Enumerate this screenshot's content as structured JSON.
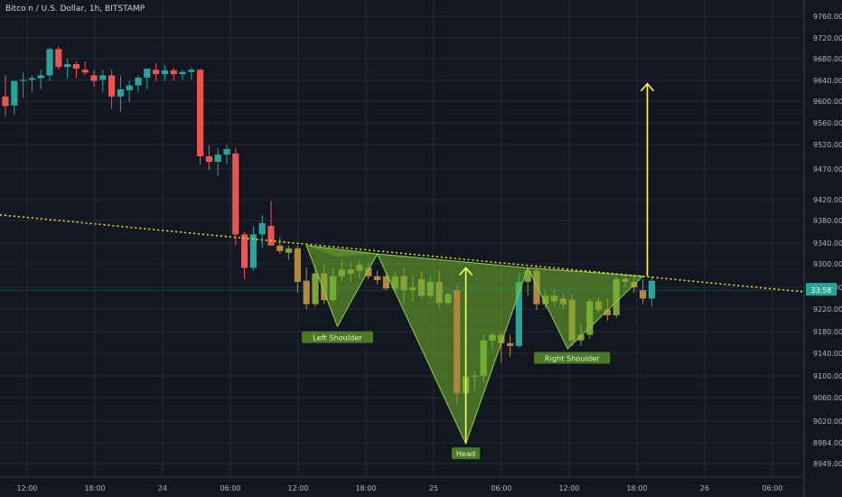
{
  "header": {
    "title": "Bitcoin / U.S. Dollar, 1h, BITSTAMP"
  },
  "chart_data": {
    "type": "candlestick",
    "title": "Bitcoin / U.S. Dollar, 1h, BITSTAMP",
    "y_ticks": [
      "9760.00",
      "9720.00",
      "9680.00",
      "9640.00",
      "9600.00",
      "9560.00",
      "9520.00",
      "9470.00",
      "9420.00",
      "9380.00",
      "9340.00",
      "9300.00",
      "9260.00",
      "9220.00",
      "9180.00",
      "9140.00",
      "9100.00",
      "9060.00",
      "9020.00",
      "8984.00",
      "8949.00"
    ],
    "x_ticks": [
      "12:00",
      "18:00",
      "24",
      "06:00",
      "12:00",
      "18:00",
      "25",
      "06:00",
      "12:00",
      "18:00",
      "26",
      "06:00"
    ],
    "ylim": [
      8930,
      9785
    ],
    "last_price_label": "33:58",
    "grid": true,
    "candle_colors": {
      "up": "#26a69a",
      "down": "#ef5350",
      "highlight_up": "#8a9a3a",
      "highlight_down": "#b08a40"
    },
    "candles": [
      {
        "o": 9612,
        "h": 9650,
        "l": 9576,
        "c": 9595
      },
      {
        "o": 9596,
        "h": 9640,
        "l": 9580,
        "c": 9640
      },
      {
        "o": 9640,
        "h": 9655,
        "l": 9610,
        "c": 9642
      },
      {
        "o": 9642,
        "h": 9650,
        "l": 9620,
        "c": 9645
      },
      {
        "o": 9645,
        "h": 9660,
        "l": 9625,
        "c": 9650
      },
      {
        "o": 9650,
        "h": 9700,
        "l": 9640,
        "c": 9697
      },
      {
        "o": 9697,
        "h": 9702,
        "l": 9660,
        "c": 9665
      },
      {
        "o": 9665,
        "h": 9680,
        "l": 9645,
        "c": 9670
      },
      {
        "o": 9670,
        "h": 9675,
        "l": 9645,
        "c": 9662
      },
      {
        "o": 9660,
        "h": 9675,
        "l": 9650,
        "c": 9655
      },
      {
        "o": 9650,
        "h": 9660,
        "l": 9630,
        "c": 9640
      },
      {
        "o": 9642,
        "h": 9660,
        "l": 9620,
        "c": 9650
      },
      {
        "o": 9650,
        "h": 9660,
        "l": 9590,
        "c": 9612
      },
      {
        "o": 9612,
        "h": 9650,
        "l": 9585,
        "c": 9625
      },
      {
        "o": 9623,
        "h": 9640,
        "l": 9602,
        "c": 9632
      },
      {
        "o": 9632,
        "h": 9650,
        "l": 9620,
        "c": 9646
      },
      {
        "o": 9646,
        "h": 9660,
        "l": 9625,
        "c": 9662
      },
      {
        "o": 9660,
        "h": 9672,
        "l": 9640,
        "c": 9652
      },
      {
        "o": 9652,
        "h": 9668,
        "l": 9640,
        "c": 9659
      },
      {
        "o": 9659,
        "h": 9664,
        "l": 9640,
        "c": 9652
      },
      {
        "o": 9652,
        "h": 9660,
        "l": 9642,
        "c": 9656
      },
      {
        "o": 9656,
        "h": 9664,
        "l": 9642,
        "c": 9660
      },
      {
        "o": 9660,
        "h": 9662,
        "l": 9490,
        "c": 9505
      },
      {
        "o": 9505,
        "h": 9525,
        "l": 9480,
        "c": 9495
      },
      {
        "o": 9495,
        "h": 9520,
        "l": 9470,
        "c": 9508
      },
      {
        "o": 9508,
        "h": 9525,
        "l": 9490,
        "c": 9518
      },
      {
        "o": 9510,
        "h": 9520,
        "l": 9345,
        "c": 9365
      },
      {
        "o": 9365,
        "h": 9370,
        "l": 9285,
        "c": 9305
      },
      {
        "o": 9305,
        "h": 9380,
        "l": 9300,
        "c": 9365
      },
      {
        "o": 9365,
        "h": 9400,
        "l": 9340,
        "c": 9385
      },
      {
        "o": 9380,
        "h": 9425,
        "l": 9345,
        "c": 9345
      },
      {
        "o": 9345,
        "h": 9360,
        "l": 9330,
        "c": 9335
      },
      {
        "o": 9332,
        "h": 9345,
        "l": 9320,
        "c": 9340
      },
      {
        "o": 9340,
        "h": 9345,
        "l": 9260,
        "c": 9280
      },
      {
        "o": 9282,
        "h": 9305,
        "l": 9230,
        "c": 9240
      },
      {
        "o": 9240,
        "h": 9310,
        "l": 9235,
        "c": 9295
      },
      {
        "o": 9295,
        "h": 9310,
        "l": 9240,
        "c": 9247
      },
      {
        "o": 9247,
        "h": 9305,
        "l": 9245,
        "c": 9290
      },
      {
        "o": 9290,
        "h": 9320,
        "l": 9280,
        "c": 9302
      },
      {
        "o": 9302,
        "h": 9315,
        "l": 9280,
        "c": 9295
      },
      {
        "o": 9300,
        "h": 9318,
        "l": 9285,
        "c": 9310
      },
      {
        "o": 9305,
        "h": 9315,
        "l": 9285,
        "c": 9290
      },
      {
        "o": 9290,
        "h": 9300,
        "l": 9275,
        "c": 9283
      },
      {
        "o": 9290,
        "h": 9300,
        "l": 9265,
        "c": 9268
      },
      {
        "o": 9268,
        "h": 9300,
        "l": 9260,
        "c": 9290
      },
      {
        "o": 9290,
        "h": 9305,
        "l": 9240,
        "c": 9265
      },
      {
        "o": 9265,
        "h": 9290,
        "l": 9245,
        "c": 9270
      },
      {
        "o": 9285,
        "h": 9300,
        "l": 9250,
        "c": 9255
      },
      {
        "o": 9255,
        "h": 9290,
        "l": 9250,
        "c": 9280
      },
      {
        "o": 9280,
        "h": 9300,
        "l": 9235,
        "c": 9242
      },
      {
        "o": 9242,
        "h": 9262,
        "l": 9238,
        "c": 9258
      },
      {
        "o": 9265,
        "h": 9275,
        "l": 9060,
        "c": 9080
      },
      {
        "o": 9080,
        "h": 9120,
        "l": 9055,
        "c": 9110
      },
      {
        "o": 9110,
        "h": 9120,
        "l": 9085,
        "c": 9112
      },
      {
        "o": 9112,
        "h": 9185,
        "l": 9100,
        "c": 9175
      },
      {
        "o": 9175,
        "h": 9190,
        "l": 9160,
        "c": 9185
      },
      {
        "o": 9185,
        "h": 9190,
        "l": 9135,
        "c": 9170
      },
      {
        "o": 9170,
        "h": 9185,
        "l": 9145,
        "c": 9165
      },
      {
        "o": 9165,
        "h": 9295,
        "l": 9162,
        "c": 9280
      },
      {
        "o": 9280,
        "h": 9305,
        "l": 9255,
        "c": 9300
      },
      {
        "o": 9300,
        "h": 9310,
        "l": 9230,
        "c": 9240
      },
      {
        "o": 9240,
        "h": 9265,
        "l": 9232,
        "c": 9255
      },
      {
        "o": 9255,
        "h": 9265,
        "l": 9235,
        "c": 9245
      },
      {
        "o": 9250,
        "h": 9260,
        "l": 9232,
        "c": 9240
      },
      {
        "o": 9248,
        "h": 9258,
        "l": 9165,
        "c": 9175
      },
      {
        "o": 9175,
        "h": 9205,
        "l": 9165,
        "c": 9185
      },
      {
        "o": 9185,
        "h": 9250,
        "l": 9178,
        "c": 9245
      },
      {
        "o": 9245,
        "h": 9252,
        "l": 9225,
        "c": 9230
      },
      {
        "o": 9230,
        "h": 9250,
        "l": 9210,
        "c": 9220
      },
      {
        "o": 9220,
        "h": 9290,
        "l": 9215,
        "c": 9285
      },
      {
        "o": 9285,
        "h": 9292,
        "l": 9270,
        "c": 9280
      },
      {
        "o": 9280,
        "h": 9290,
        "l": 9260,
        "c": 9270
      },
      {
        "o": 9265,
        "h": 9285,
        "l": 9240,
        "c": 9250
      },
      {
        "o": 9250,
        "h": 9290,
        "l": 9235,
        "c": 9282
      }
    ],
    "neckline_label": "",
    "annotations": [
      {
        "label": "Left Shoulder"
      },
      {
        "label": "Head"
      },
      {
        "label": "Right Shoulder"
      }
    ],
    "colors": {
      "pattern_fill": "#6fb52c",
      "neckline": "#e6e600",
      "arrow": "#ffff55",
      "label_bg": "#4a7a28"
    }
  }
}
